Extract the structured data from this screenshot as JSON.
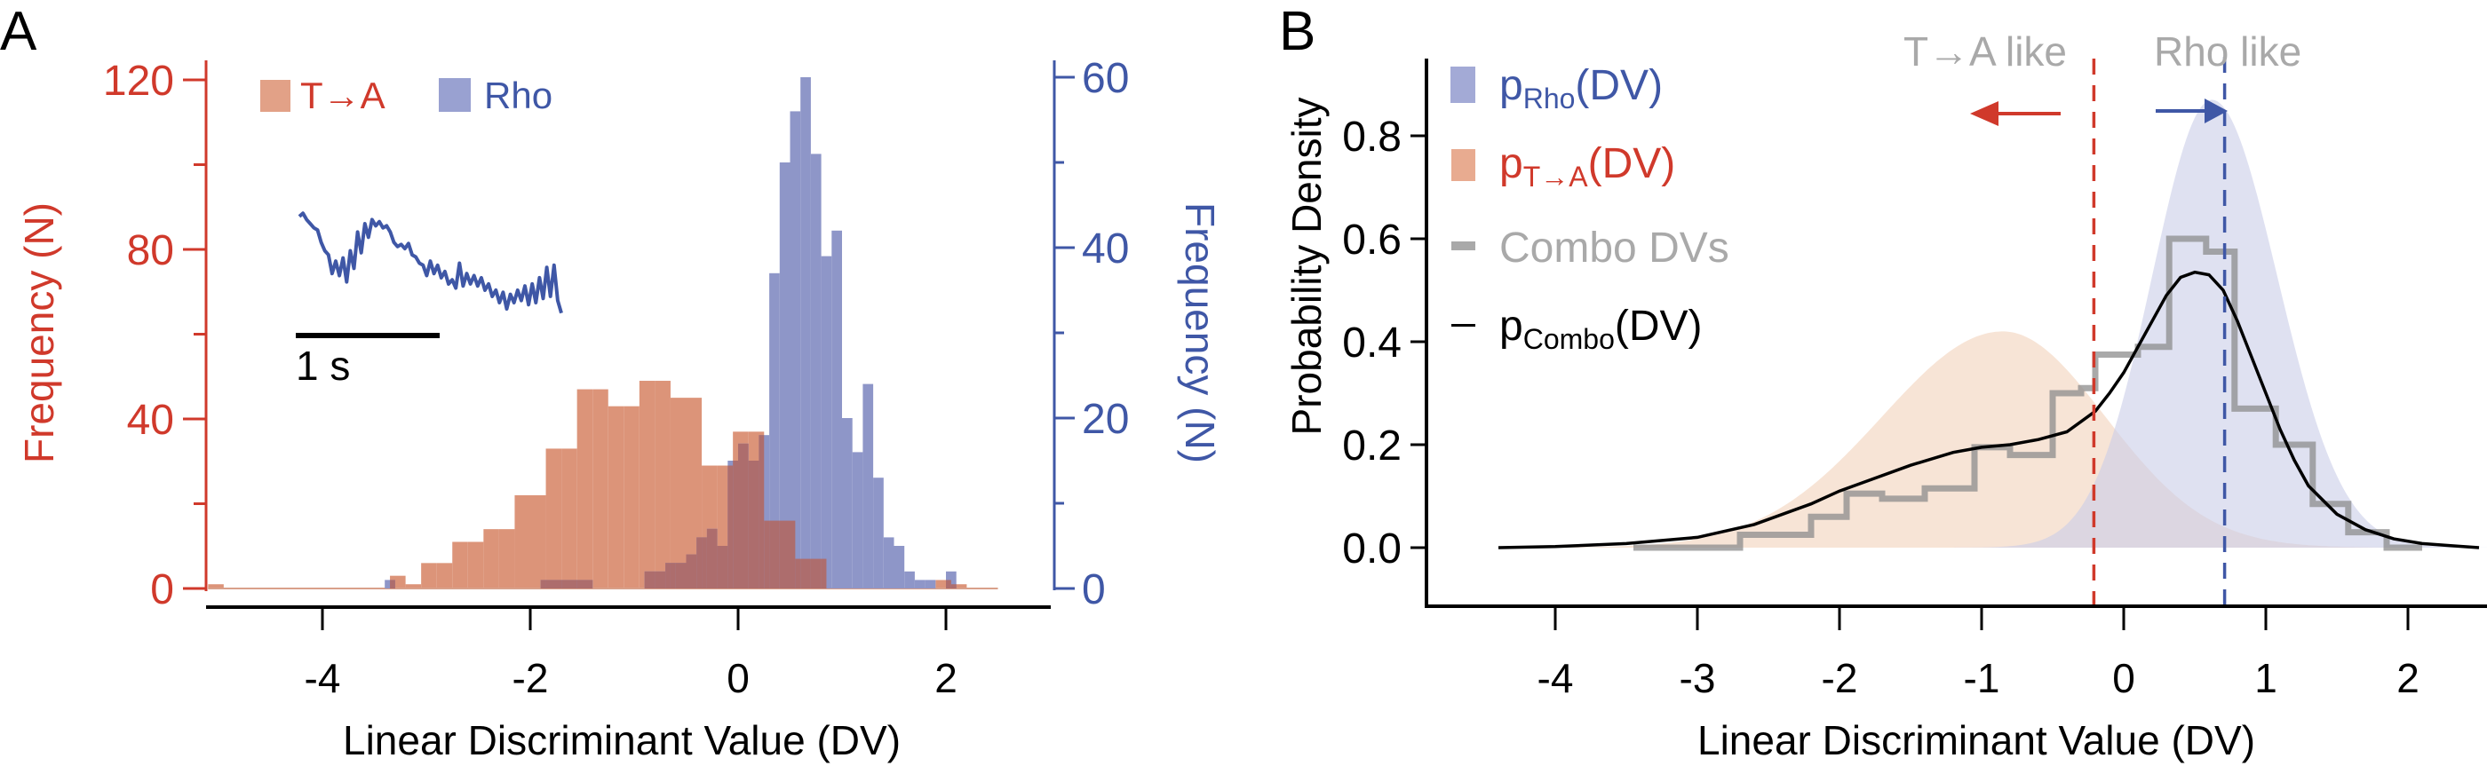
{
  "chart_data": [
    {
      "panel_label": "A",
      "type": "bar",
      "subtype": "overlaid histogram with dual y-axes and inset trace",
      "xlabel": "Linear Discriminant Value (DV)",
      "xlim": [
        -5.3,
        3.0
      ],
      "xticks": [
        -4,
        -2,
        0,
        2
      ],
      "xtick_labels": [
        "-4",
        "-2",
        "0",
        "2"
      ],
      "y_left": {
        "label": "Frequency (N)",
        "ylim": [
          0,
          120
        ],
        "ticks": [
          0,
          40,
          80,
          120
        ],
        "tick_labels": [
          "0",
          "40",
          "80",
          "120"
        ],
        "minor_ticks": [
          20,
          60,
          100
        ],
        "color": "#d0392b"
      },
      "y_right": {
        "label": "Frequency (N)",
        "ylim": [
          0,
          60
        ],
        "ticks": [
          0,
          20,
          40,
          60
        ],
        "tick_labels": [
          "0",
          "20",
          "40",
          "60"
        ],
        "minor_ticks": [
          10,
          30,
          50
        ],
        "color": "#3f57a6"
      },
      "legend": {
        "placement": "top-left",
        "entries": [
          {
            "label": "T→A",
            "color": "#e2a187",
            "text_color": "#d0392b"
          },
          {
            "label": "Rho",
            "color": "#99a1d1",
            "text_color": "#3f57a6"
          }
        ]
      },
      "series": [
        {
          "name": "T→A",
          "axis": "left",
          "color": "#dc9479",
          "bin_edges": [
            -5.1,
            -4.95,
            -4.0,
            -3.35,
            -3.2,
            -3.05,
            -2.9,
            -2.75,
            -2.6,
            -2.45,
            -2.3,
            -2.15,
            -2.0,
            -1.85,
            -1.7,
            -1.55,
            -1.4,
            -1.25,
            -1.1,
            -0.95,
            -0.8,
            -0.65,
            -0.5,
            -0.35,
            -0.2,
            -0.05,
            0.1,
            0.25,
            0.4,
            0.55,
            0.7,
            0.85,
            1.0,
            1.15,
            1.3,
            1.45,
            1.6,
            1.75,
            1.9,
            2.05,
            2.2,
            2.35,
            2.5
          ],
          "values": [
            1,
            0,
            0,
            3,
            1,
            6,
            6,
            11,
            11,
            14,
            14,
            22,
            22,
            33,
            33,
            47,
            47,
            43,
            43,
            49,
            49,
            45,
            45,
            29,
            29,
            37,
            37,
            16,
            16,
            7,
            7,
            0,
            0,
            0,
            0,
            0,
            0,
            0,
            2,
            1,
            0,
            0
          ]
        },
        {
          "name": "Rho",
          "axis": "right",
          "color": "#8e96c8",
          "bin_edges": [
            -3.4,
            -3.3,
            -1.9,
            -1.5,
            -1.4,
            -1.3,
            -1.2,
            -1.1,
            -1.0,
            -0.9,
            -0.8,
            -0.7,
            -0.6,
            -0.5,
            -0.4,
            -0.3,
            -0.2,
            -0.1,
            0.0,
            0.1,
            0.2,
            0.3,
            0.4,
            0.5,
            0.6,
            0.7,
            0.8,
            0.9,
            1.0,
            1.1,
            1.2,
            1.3,
            1.4,
            1.5,
            1.6,
            1.7,
            1.8,
            1.9,
            2.0,
            2.1,
            2.2,
            2.3,
            2.4
          ],
          "values": [
            1,
            0,
            1,
            1,
            0,
            0,
            0,
            0,
            0,
            2,
            2,
            3,
            3,
            4,
            6,
            7,
            5,
            15,
            17,
            15,
            18,
            37,
            50,
            56,
            60,
            51,
            39,
            42,
            20,
            16,
            24,
            13,
            6,
            5,
            2,
            1,
            1,
            0,
            2,
            0,
            0,
            0
          ]
        }
      ],
      "inset": {
        "type": "line",
        "description": "example fluorescence trace",
        "color": "#3f57a6",
        "scalebar_label": "1 s",
        "values": [
          0.95,
          0.98,
          0.92,
          0.88,
          0.84,
          0.82,
          0.7,
          0.62,
          0.58,
          0.4,
          0.52,
          0.38,
          0.55,
          0.32,
          0.62,
          0.45,
          0.8,
          0.6,
          0.88,
          0.75,
          0.92,
          0.86,
          0.9,
          0.84,
          0.86,
          0.8,
          0.7,
          0.66,
          0.68,
          0.64,
          0.69,
          0.58,
          0.56,
          0.5,
          0.48,
          0.38,
          0.52,
          0.4,
          0.48,
          0.36,
          0.42,
          0.3,
          0.34,
          0.26,
          0.5,
          0.28,
          0.4,
          0.3,
          0.38,
          0.28,
          0.36,
          0.24,
          0.3,
          0.18,
          0.24,
          0.12,
          0.22,
          0.06,
          0.2,
          0.12,
          0.24,
          0.14,
          0.28,
          0.1,
          0.3,
          0.12,
          0.36,
          0.16,
          0.46,
          0.18,
          0.48,
          0.14,
          0.02
        ]
      }
    },
    {
      "panel_label": "B",
      "type": "area",
      "subtype": "density fits with step histogram and threshold lines",
      "xlabel": "Linear Discriminant Value (DV)",
      "ylabel": "Probability Density",
      "xlim": [
        -4.55,
        2.6
      ],
      "ylim": [
        -0.1,
        0.92
      ],
      "xticks": [
        -4,
        -3,
        -2,
        -1,
        0,
        1,
        2
      ],
      "xtick_labels": [
        "-4",
        "-3",
        "-2",
        "-1",
        "0",
        "1",
        "2"
      ],
      "yticks": [
        0.0,
        0.2,
        0.4,
        0.6,
        0.8
      ],
      "ytick_labels": [
        "0.0",
        "0.2",
        "0.4",
        "0.6",
        "0.8"
      ],
      "legend": {
        "placement": "top-left",
        "entries": [
          {
            "kind": "patch",
            "label_main": "p",
            "label_sub": "Rho",
            "label_tail": "(DV)",
            "color": "#a3aad6",
            "text_color": "#3f57a6"
          },
          {
            "kind": "patch",
            "label_main": "p",
            "label_sub": "T→A",
            "label_tail": "(DV)",
            "color": "#e8ab90",
            "text_color": "#d0392b"
          },
          {
            "kind": "line",
            "label": "Combo DVs",
            "color": "#a9a9a9",
            "text_color": "#a9a9a9"
          },
          {
            "kind": "line",
            "label_main": "p",
            "label_sub": "Combo",
            "label_tail": "(DV)",
            "color": "#000000",
            "text_color": "#000000"
          }
        ]
      },
      "series": [
        {
          "name": "p_Rho(DV)",
          "kind": "filled-density",
          "color": "#dfe2f1",
          "model": "skew-normal-like",
          "peak_x": 0.62,
          "peak_y": 0.87,
          "left_sd": 0.42,
          "right_sd": 0.46
        },
        {
          "name": "p_T→A(DV)",
          "kind": "filled-density",
          "color": "#f7e3d6",
          "model": "skew-normal-like",
          "peak_x": -0.85,
          "peak_y": 0.42,
          "left_sd": 0.85,
          "right_sd": 0.72
        },
        {
          "name": "Combo DVs",
          "kind": "step-histogram",
          "color": "#999999",
          "bin_edges": [
            -3.45,
            -2.7,
            -2.2,
            -1.95,
            -1.7,
            -1.4,
            -1.05,
            -0.8,
            -0.5,
            -0.3,
            -0.2,
            0.1,
            0.32,
            0.58,
            0.78,
            1.07,
            1.33,
            1.58,
            1.85,
            2.1
          ],
          "values": [
            0.0,
            0.025,
            0.06,
            0.105,
            0.095,
            0.115,
            0.195,
            0.18,
            0.3,
            0.31,
            0.375,
            0.39,
            0.6,
            0.575,
            0.27,
            0.2,
            0.085,
            0.03,
            0.0
          ]
        },
        {
          "name": "p_Combo(DV)",
          "kind": "line",
          "color": "#000000",
          "x": [
            -4.4,
            -4.0,
            -3.5,
            -3.0,
            -2.6,
            -2.2,
            -2.0,
            -1.8,
            -1.5,
            -1.2,
            -1.0,
            -0.8,
            -0.6,
            -0.4,
            -0.2,
            -0.1,
            0.0,
            0.1,
            0.2,
            0.3,
            0.4,
            0.5,
            0.6,
            0.7,
            0.8,
            0.9,
            1.0,
            1.1,
            1.2,
            1.3,
            1.5,
            1.7,
            1.9,
            2.1,
            2.3,
            2.5
          ],
          "y": [
            0.0,
            0.002,
            0.008,
            0.02,
            0.045,
            0.085,
            0.11,
            0.13,
            0.16,
            0.185,
            0.195,
            0.2,
            0.21,
            0.225,
            0.265,
            0.3,
            0.34,
            0.39,
            0.44,
            0.49,
            0.525,
            0.535,
            0.53,
            0.5,
            0.44,
            0.37,
            0.3,
            0.23,
            0.17,
            0.12,
            0.065,
            0.035,
            0.017,
            0.008,
            0.004,
            0.0
          ]
        }
      ],
      "thresholds": [
        {
          "name": "T→A threshold",
          "x": -0.21,
          "color": "#d0392b",
          "style": "dashed"
        },
        {
          "name": "Rho threshold",
          "x": 0.71,
          "color": "#3f57a6",
          "style": "dashed"
        }
      ],
      "annotations": [
        {
          "text": "T→A like",
          "color": "#a9a9a9",
          "arrow": "left",
          "arrow_color": "#d0392b"
        },
        {
          "text": "Rho like",
          "color": "#a9a9a9",
          "arrow": "right",
          "arrow_color": "#3f57a6"
        }
      ]
    }
  ]
}
